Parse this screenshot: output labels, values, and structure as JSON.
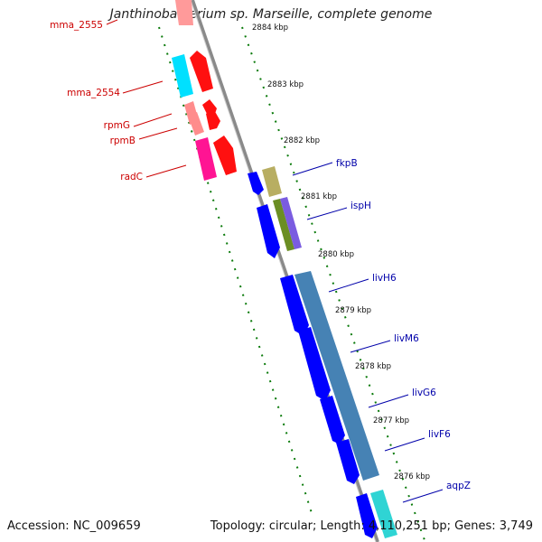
{
  "title": "Janthinobacterium sp. Marseille, complete genome",
  "accession_label": "Accession: NC_009659",
  "topology_label": "Topology: circular; Length: 4,110,251 bp; Genes: 3,749",
  "colors": {
    "left_gene_label": "#cc0000",
    "right_gene_label": "#0000aa",
    "backbone": "#888888",
    "dots": "#0a7a0a"
  },
  "kbp_ticks": [
    "2884 kbp",
    "2883 kbp",
    "2882 kbp",
    "2881 kbp",
    "2880 kbp",
    "2879 kbp",
    "2878 kbp",
    "2877 kbp",
    "2876 kbp"
  ],
  "left_labels": [
    "mma_2555",
    "mma_2554",
    "rpmG",
    "rpmB",
    "radC"
  ],
  "right_labels": [
    "fkpB",
    "ispH",
    "livH6",
    "livM6",
    "livG6",
    "livF6",
    "aqpZ"
  ]
}
